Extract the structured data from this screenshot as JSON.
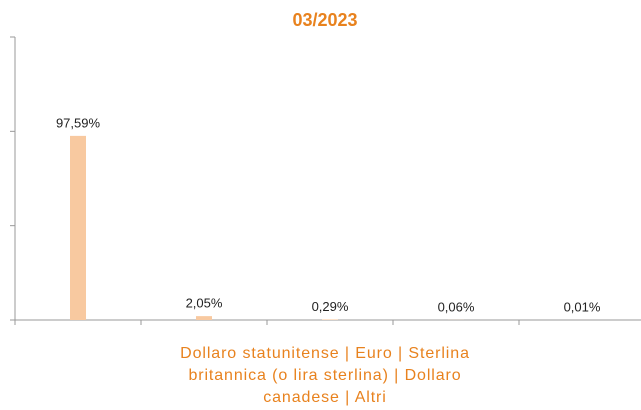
{
  "chart_data": {
    "type": "bar",
    "title": "03/2023",
    "categories": [
      null,
      null,
      null,
      null,
      null
    ],
    "values": [
      97.59,
      2.05,
      0.29,
      0.06,
      0.01
    ],
    "value_labels": [
      "97,59%",
      "2,05%",
      "0,29%",
      "0,06%",
      "0,01%"
    ],
    "color": "#f8c9a0",
    "xlabel": "Dollaro statunitense | Euro | Sterlina britannica (o lira sterlina) | Dollaro canadese | Altri",
    "ylim": [
      0,
      150
    ],
    "yticks": [
      0,
      50,
      100,
      150
    ],
    "grid": false
  }
}
